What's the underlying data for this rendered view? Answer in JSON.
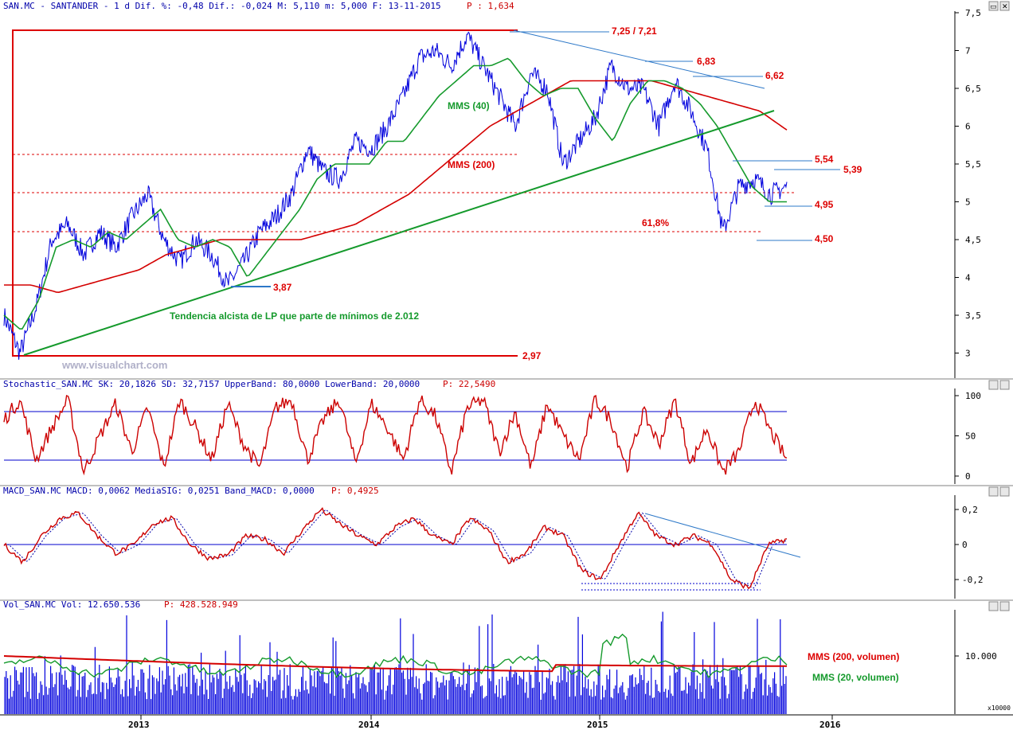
{
  "headers": {
    "main": "SAN.MC - SANTANDER -  1 d Dif. %: -0,48 Dif.: -0,024 M: 5,110 m: 5,000 F: 13-11-2015",
    "main_p": "P : 1,634",
    "stoch": "Stochastic_SAN.MC SK: 20,1826 SD: 32,7157 UpperBand: 80,0000 LowerBand: 20,0000",
    "stoch_p": "P: 22,5490",
    "macd": "MACD_SAN.MC MACD: 0,0062 MediaSIG: 0,0251 Band_MACD: 0,0000",
    "macd_p": "P: 0,4925",
    "vol": "Vol_SAN.MC Vol: 12.650.536",
    "vol_p": "P: 428.528.949"
  },
  "watermark": "www.visualchart.com",
  "annotations": {
    "top": "7,25 / 7,21",
    "r683": "6,83",
    "r662": "6,62",
    "r554": "5,54",
    "r539": "5,39",
    "r495": "4,95",
    "r450": "4,50",
    "r387": "3,87",
    "r297": "2,97",
    "fib": "61,8%",
    "mms40": "MMS (40)",
    "mms200": "MMS (200)",
    "trend": "Tendencia alcista de LP que parte de mínimos de 2.012",
    "vol200": "MMS (200, volumen)",
    "vol20": "MMS (20, volumen)",
    "x10000": "x10000"
  },
  "colors": {
    "price": "#0000dd",
    "mms40": "#159a2c",
    "mms200": "#d40000",
    "trend": "#159a2c",
    "stoch": "#cc0000",
    "band": "#0000cc",
    "macd": "#cc0000",
    "vol": "#0000dd"
  },
  "chart_data": [
    {
      "type": "line",
      "name": "price",
      "ylim": [
        2.7,
        7.5
      ],
      "y_ticks": [
        "7,5",
        "7",
        "6,5",
        "6",
        "5,5",
        "5",
        "4,5",
        "4",
        "3,5",
        "3"
      ],
      "x_ticks": [
        "2013",
        "2014",
        "2015",
        "2016"
      ],
      "series": [
        {
          "values": [
            3.5,
            3.0,
            3.6,
            4.5,
            4.7,
            4.3,
            4.6,
            4.4,
            4.8,
            5.1,
            4.5,
            4.2,
            4.5,
            4.3,
            3.9,
            4.2,
            4.6,
            4.8,
            5.1,
            5.7,
            5.4,
            5.3,
            5.8,
            5.7,
            6.0,
            6.4,
            6.9,
            7.0,
            6.8,
            7.2,
            6.8,
            6.4,
            6.0,
            6.7,
            6.5,
            5.5,
            5.8,
            6.1,
            6.8,
            6.5,
            6.5,
            6.0,
            6.6,
            6.2,
            5.7,
            4.6,
            5.2,
            5.3,
            5.1,
            5.2
          ]
        },
        {
          "name": "MMS (40)",
          "values": [
            3.5,
            3.3,
            3.7,
            4.4,
            4.5,
            4.4,
            4.6,
            4.5,
            4.7,
            4.9,
            4.5,
            4.4,
            4.5,
            4.4,
            4.0,
            4.3,
            4.6,
            4.9,
            5.3,
            5.5,
            5.5,
            5.5,
            5.8,
            5.8,
            6.1,
            6.4,
            6.6,
            6.8,
            6.8,
            6.9,
            6.6,
            6.4,
            6.5,
            6.5,
            6.1,
            5.8,
            6.3,
            6.6,
            6.6,
            6.5,
            6.3,
            6.0,
            5.6,
            5.2,
            5.0,
            5.0
          ]
        },
        {
          "name": "MMS (200)",
          "values": [
            3.9,
            3.9,
            3.8,
            3.9,
            4.0,
            4.1,
            4.3,
            4.4,
            4.5,
            4.5,
            4.5,
            4.5,
            4.6,
            4.7,
            4.9,
            5.1,
            5.4,
            5.7,
            6.0,
            6.2,
            6.4,
            6.6,
            6.6,
            6.6,
            6.6,
            6.5,
            6.4,
            6.3,
            6.2,
            5.95
          ]
        }
      ]
    },
    {
      "type": "line",
      "name": "stochastic",
      "ylim": [
        0,
        100
      ],
      "y_ticks": [
        "100",
        "50",
        "0"
      ],
      "bands": [
        80,
        20
      ],
      "series": [
        {
          "values": [
            70,
            95,
            20,
            60,
            95,
            5,
            50,
            90,
            30,
            85,
            10,
            95,
            60,
            20,
            90,
            40,
            10,
            85,
            95,
            20,
            70,
            95,
            15,
            90,
            60,
            20,
            95,
            75,
            5,
            85,
            95,
            30,
            80,
            10,
            90,
            50,
            20,
            95,
            70,
            10,
            80,
            40,
            95,
            15,
            60,
            5,
            30,
            95,
            55,
            20
          ]
        }
      ]
    },
    {
      "type": "line",
      "name": "macd",
      "ylim": [
        -0.3,
        0.25
      ],
      "y_ticks": [
        "0,2",
        "0",
        "-0,2"
      ],
      "series": [
        {
          "values": [
            0.0,
            -0.1,
            0.05,
            0.15,
            0.18,
            0.05,
            -0.05,
            0.0,
            0.12,
            0.15,
            0.0,
            -0.08,
            -0.06,
            0.05,
            0.03,
            -0.05,
            0.08,
            0.2,
            0.12,
            0.05,
            0.0,
            0.1,
            0.15,
            0.05,
            0.0,
            0.15,
            0.08,
            -0.1,
            -0.05,
            0.1,
            0.05,
            -0.15,
            -0.2,
            0.0,
            0.18,
            0.05,
            0.0,
            0.05,
            0.0,
            -0.2,
            -0.25,
            0.0,
            0.03
          ]
        }
      ]
    },
    {
      "type": "bar",
      "name": "volume",
      "y_ticks": [
        "10.000"
      ],
      "unit": "x10000",
      "series": [
        {
          "name": "MMS (200, volumen)"
        },
        {
          "name": "MMS (20, volumen)"
        }
      ]
    }
  ]
}
